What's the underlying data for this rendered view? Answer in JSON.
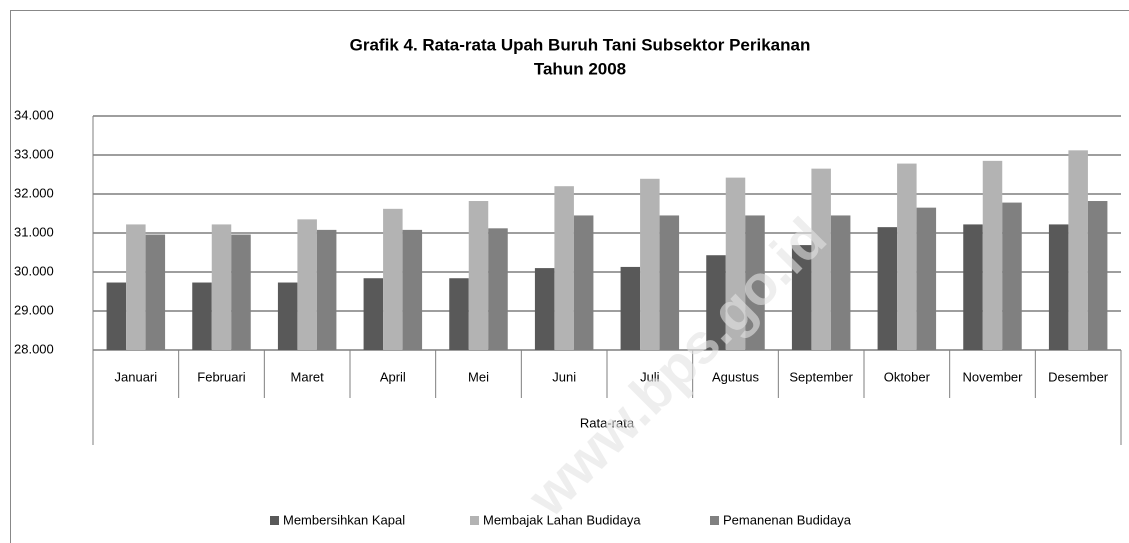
{
  "chart_data": {
    "type": "bar",
    "title": "Grafik 4. Rata-rata Upah Buruh Tani Subsektor Perikanan",
    "subtitle": "Tahun 2008",
    "x_group_label": "Rata-rata",
    "watermark": "www.bps.go.id",
    "categories": [
      "Januari",
      "Februari",
      "Maret",
      "April",
      "Mei",
      "Juni",
      "Juli",
      "Agustus",
      "September",
      "Oktober",
      "November",
      "Desember"
    ],
    "series": [
      {
        "name": "Membersihkan Kapal",
        "color": "#595959",
        "values": [
          29730,
          29730,
          29730,
          29840,
          29840,
          30100,
          30130,
          30430,
          30690,
          31150,
          31220,
          31220
        ]
      },
      {
        "name": "Membajak Lahan Budidaya",
        "color": "#b3b3b3",
        "values": [
          31220,
          31220,
          31350,
          31620,
          31820,
          32200,
          32390,
          32420,
          32650,
          32780,
          32850,
          33120
        ]
      },
      {
        "name": "Pemanenan Budidaya",
        "color": "#808080",
        "values": [
          30960,
          30960,
          31080,
          31080,
          31120,
          31450,
          31450,
          31450,
          31450,
          31650,
          31780,
          31820
        ]
      }
    ],
    "ylim": [
      28000,
      34000
    ],
    "yticks": [
      {
        "value": 28000,
        "label": "28.000"
      },
      {
        "value": 29000,
        "label": "29.000"
      },
      {
        "value": 30000,
        "label": "30.000"
      },
      {
        "value": 31000,
        "label": "31.000"
      },
      {
        "value": 32000,
        "label": "32.000"
      },
      {
        "value": 33000,
        "label": "33.000"
      },
      {
        "value": 34000,
        "label": "34.000"
      }
    ],
    "grid": true,
    "legend": "bottom"
  }
}
